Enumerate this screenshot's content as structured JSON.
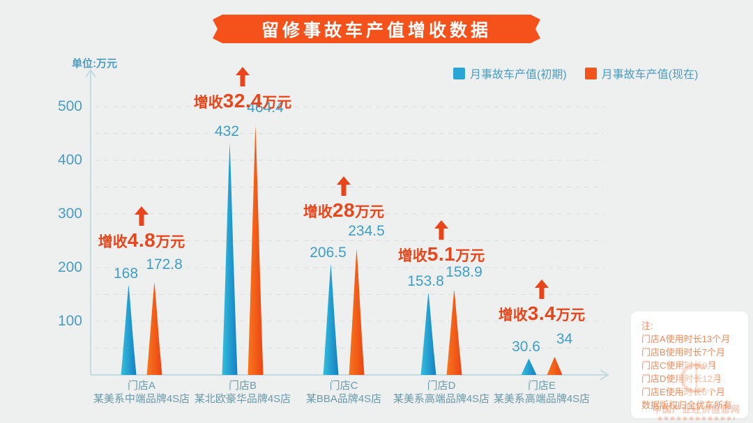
{
  "title": "留修事故车产值增收数据",
  "unit_label": "单位:万元",
  "legend": [
    {
      "label": "月事故车产值(初期)",
      "color": "#2aa6d5"
    },
    {
      "label": "月事故车产值(现在)",
      "color": "#f0551c"
    }
  ],
  "chart_data": {
    "type": "bar",
    "title": "留修事故车产值增收数据",
    "unit": "万元",
    "categories": [
      "门店A",
      "门店B",
      "门店C",
      "门店D",
      "门店E"
    ],
    "category_descriptions": [
      "某美系中端品牌4S店",
      "某北欧豪华品牌4S店",
      "某BBA品牌4S店",
      "某美系高端品牌4S店",
      "某美系高端品牌4S店"
    ],
    "series": [
      {
        "name": "月事故车产值(初期)",
        "values": [
          168,
          432,
          206.5,
          153.8,
          30.6
        ],
        "color_from": "#35bedb",
        "color_to": "#1380c4"
      },
      {
        "name": "月事故车产值(现在)",
        "values": [
          172.8,
          464.4,
          234.5,
          158.9,
          34
        ],
        "color_from": "#f7761e",
        "color_to": "#eb4513"
      }
    ],
    "value_labels": [
      [
        "168",
        "432",
        "206.5",
        "153.8",
        "30.6"
      ],
      [
        "172.8",
        "464.4",
        "234.5",
        "158.9",
        "34"
      ]
    ],
    "annotations": [
      {
        "prefix": "增收",
        "amount": "4.8",
        "suffix": "万元"
      },
      {
        "prefix": "增收",
        "amount": "32.4",
        "suffix": "万元"
      },
      {
        "prefix": "增收",
        "amount": "28",
        "suffix": "万元"
      },
      {
        "prefix": "增收",
        "amount": "5.1",
        "suffix": "万元"
      },
      {
        "prefix": "增收",
        "amount": "3.4",
        "suffix": "万元"
      }
    ],
    "yticks": [
      "100",
      "200",
      "300",
      "400",
      "500"
    ],
    "ylim": [
      0,
      520
    ],
    "grid": "dashed horizontal, every 50",
    "legend_position": "top-right"
  },
  "note": {
    "title": "注:",
    "lines": [
      "门店A使用时长13个月",
      "门店B使用时长7个月",
      "门店C使用时长9月",
      "门店D使用时长12月",
      "门店E使用时长6个月",
      "数据版权归全优车所有"
    ]
  },
  "watermark": {
    "text": "中国产业经济信息网"
  },
  "colors": {
    "banner": "#f4511b",
    "annotation": "#e8461a",
    "axis": "#c3dbe2",
    "grid": "#dbdedd",
    "axis_label": "#4a9dc2",
    "value_label": "#3f9ec6",
    "xaxis_label": "#6899ad",
    "note_text": "#ef8a5a",
    "background": "#eef0ef"
  }
}
